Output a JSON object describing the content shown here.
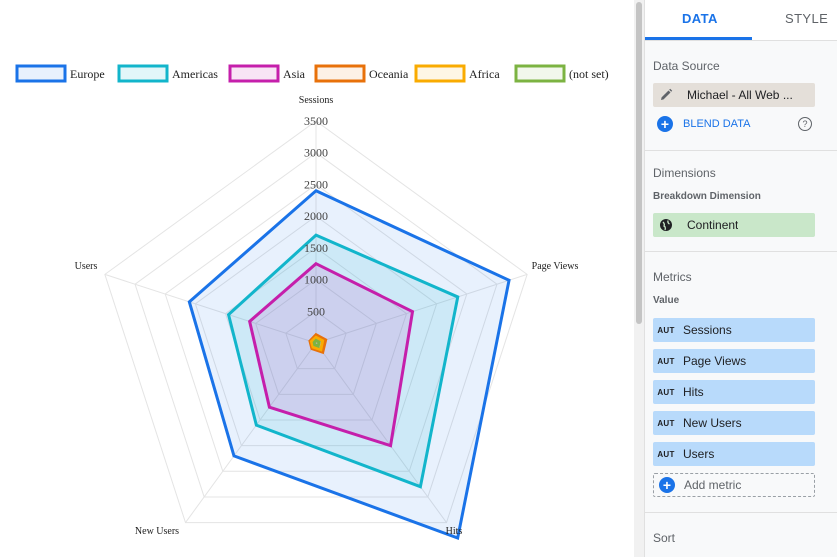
{
  "chart_data": {
    "type": "radar",
    "axes": [
      "Sessions",
      "Page Views",
      "Hits",
      "New Users",
      "Users"
    ],
    "tick_labels": [
      "500",
      "1000",
      "1500",
      "2000",
      "2500",
      "3000",
      "3500"
    ],
    "rmax": 3500,
    "series": [
      {
        "name": "Europe",
        "color": "#1a73e8",
        "fill": "rgba(26,115,232,0.10)",
        "values": [
          2400,
          3200,
          3800,
          2200,
          2100
        ]
      },
      {
        "name": "Americas",
        "color": "#12b5cb",
        "fill": "rgba(18,181,203,0.12)",
        "values": [
          1700,
          2350,
          2800,
          1600,
          1450
        ]
      },
      {
        "name": "Asia",
        "color": "#c51fab",
        "fill": "rgba(197,31,171,0.12)",
        "values": [
          1250,
          1600,
          2000,
          1250,
          1100
        ]
      },
      {
        "name": "Oceania",
        "color": "#e8710a",
        "fill": "rgba(232,113,10,0.10)",
        "values": [
          130,
          160,
          180,
          110,
          100
        ]
      },
      {
        "name": "Africa",
        "color": "#f9ab00",
        "fill": "rgba(249,171,0,0.10)",
        "values": [
          90,
          110,
          130,
          80,
          75
        ]
      },
      {
        "name": "(not set)",
        "color": "#7cb342",
        "fill": "rgba(124,179,66,0.10)",
        "values": [
          40,
          50,
          60,
          35,
          30
        ]
      }
    ]
  },
  "panel": {
    "tabs": {
      "data": "DATA",
      "style": "STYLE"
    },
    "data_source": {
      "title": "Data Source",
      "source_name": "Michael - All Web ...",
      "blend_label": "BLEND DATA",
      "help_glyph": "?"
    },
    "dimensions": {
      "title": "Dimensions",
      "subtitle": "Breakdown Dimension",
      "chip": "Continent"
    },
    "metrics": {
      "title": "Metrics",
      "subtitle": "Value",
      "aggregation": "AUT",
      "items": [
        "Sessions",
        "Page Views",
        "Hits",
        "New Users",
        "Users"
      ],
      "add_label": "Add metric"
    },
    "sort": {
      "title": "Sort"
    }
  }
}
